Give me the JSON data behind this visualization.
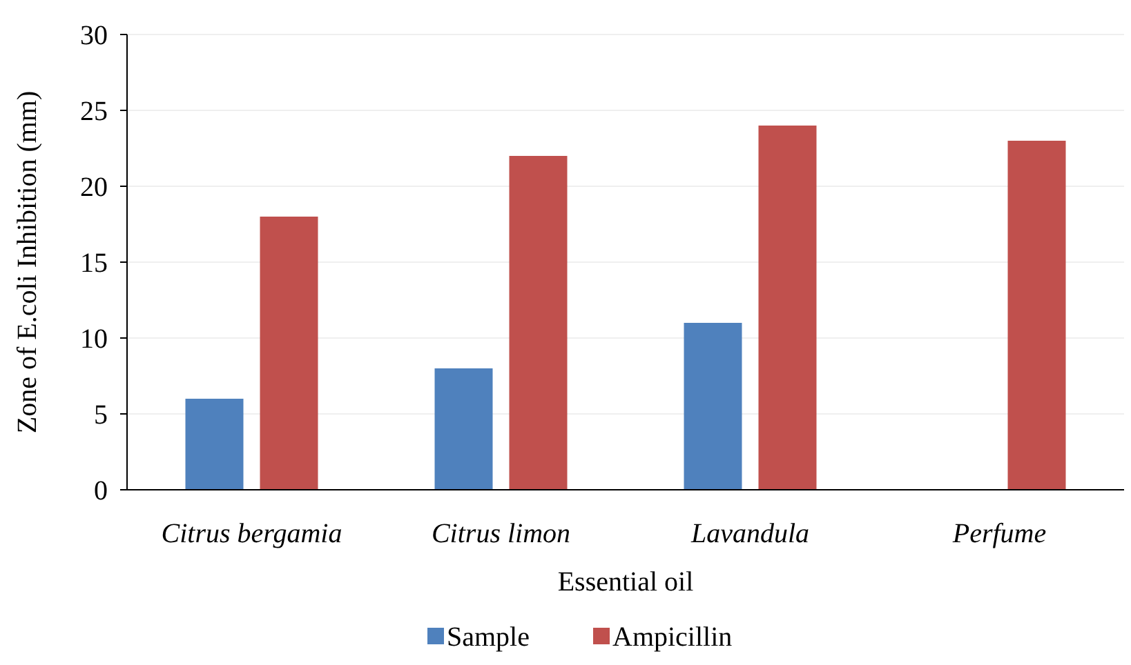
{
  "chart_data": {
    "type": "bar",
    "xlabel": "Essential oil",
    "ylabel": "Zone of E.coli Inhibition (mm)",
    "categories": [
      "Citrus bergamia",
      "Citrus limon",
      "Lavandula",
      "Perfume"
    ],
    "series": [
      {
        "name": "Sample",
        "color": "#4f81bd",
        "values": [
          6,
          8,
          11,
          null
        ]
      },
      {
        "name": "Ampicillin",
        "color": "#c0504d",
        "values": [
          18,
          22,
          24,
          23
        ]
      }
    ],
    "ylim": [
      0,
      30
    ],
    "yticks": [
      0,
      5,
      10,
      15,
      20,
      25,
      30
    ],
    "grid": "y",
    "legend": "bottom"
  }
}
